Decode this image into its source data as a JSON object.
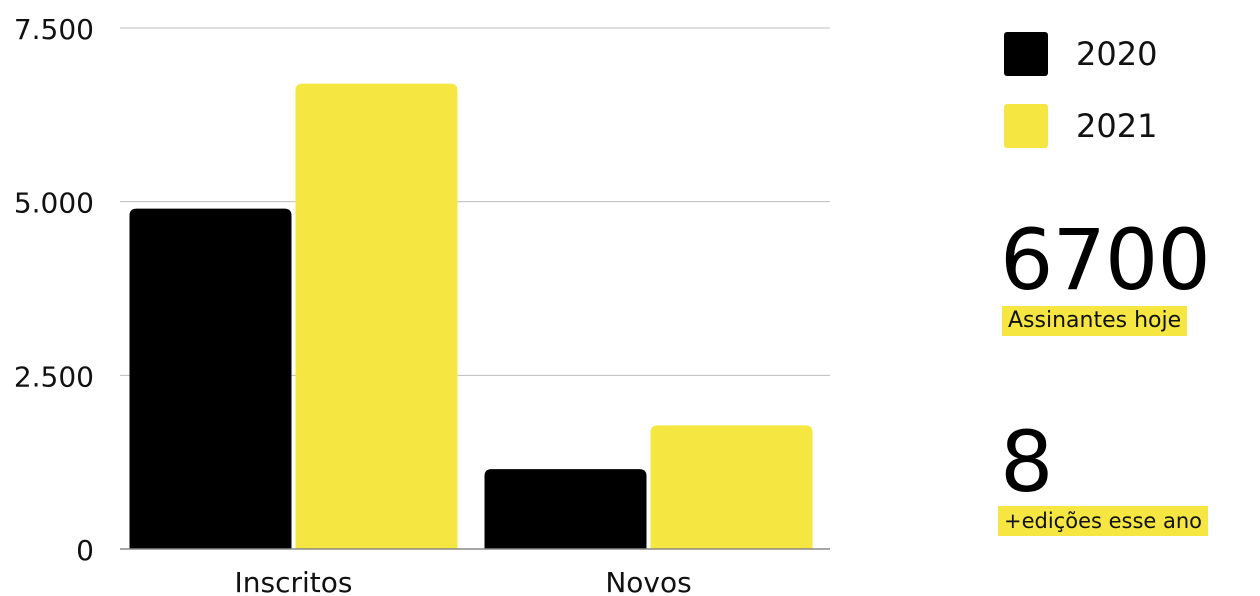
{
  "chart_data": {
    "type": "bar",
    "categories": [
      "Inscritos",
      "Novos"
    ],
    "series": [
      {
        "name": "2020",
        "color": "#000000",
        "values": [
          4900,
          1150
        ]
      },
      {
        "name": "2021",
        "color": "#f5e642",
        "values": [
          6700,
          1780
        ]
      }
    ],
    "ylim": [
      0,
      7500
    ],
    "yticks": [
      {
        "value": 0,
        "label": "0"
      },
      {
        "value": 2500,
        "label": "2.500"
      },
      {
        "value": 5000,
        "label": "5.000"
      },
      {
        "value": 7500,
        "label": "7.500"
      }
    ],
    "grid": true,
    "legend_position": "right"
  },
  "legend": {
    "items": [
      {
        "label": "2020",
        "color": "#000000"
      },
      {
        "label": "2021",
        "color": "#f5e642"
      }
    ]
  },
  "stats": {
    "subscribers": {
      "value": "6700",
      "label": "Assinantes hoje"
    },
    "editions": {
      "value": "8",
      "label": "+edições esse ano"
    }
  }
}
